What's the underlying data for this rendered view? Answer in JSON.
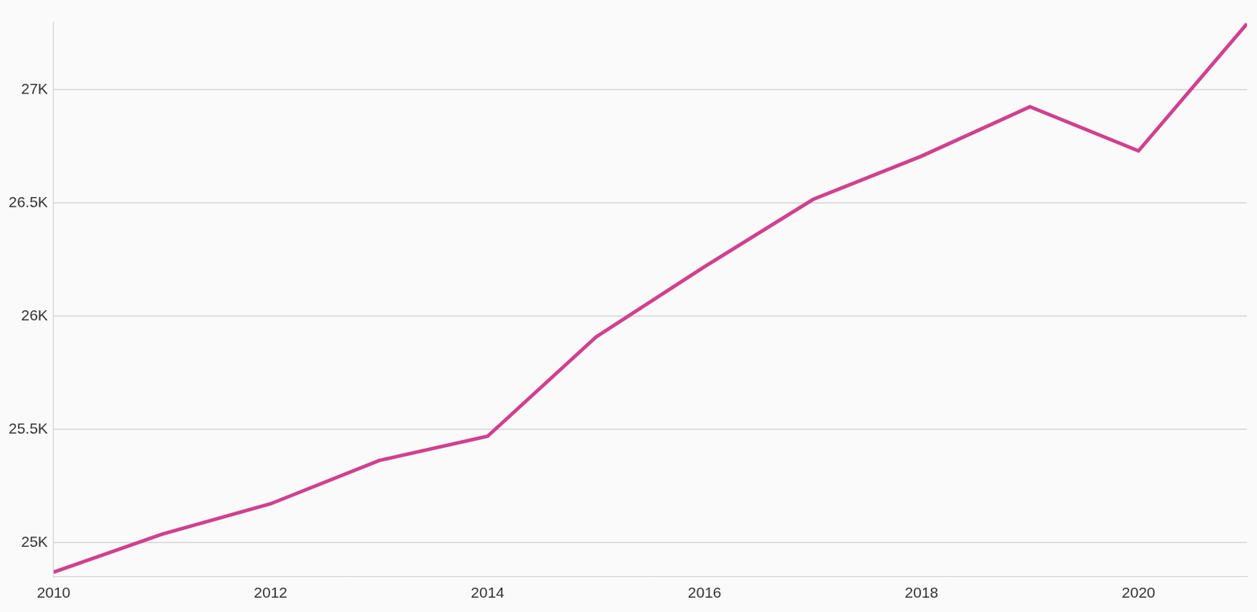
{
  "chart_data": {
    "type": "line",
    "x": [
      2010,
      2011,
      2012,
      2013,
      2014,
      2015,
      2016,
      2017,
      2018,
      2019,
      2020,
      2021
    ],
    "values": [
      24870,
      25038,
      25172,
      25363,
      25470,
      25908,
      26218,
      26515,
      26706,
      26924,
      26729,
      27290
    ],
    "color": "#d0418e",
    "xlim": [
      2010,
      2021
    ],
    "xticks": [
      2010,
      2012,
      2014,
      2016,
      2018,
      2020
    ],
    "ylim": [
      24850,
      27300
    ],
    "yticks": [
      {
        "value": 25000,
        "label": "25K"
      },
      {
        "value": 25500,
        "label": "25.5K"
      },
      {
        "value": 26000,
        "label": "26K"
      },
      {
        "value": 26500,
        "label": "26.5K"
      },
      {
        "value": 27000,
        "label": "27K"
      }
    ],
    "grid": true
  }
}
